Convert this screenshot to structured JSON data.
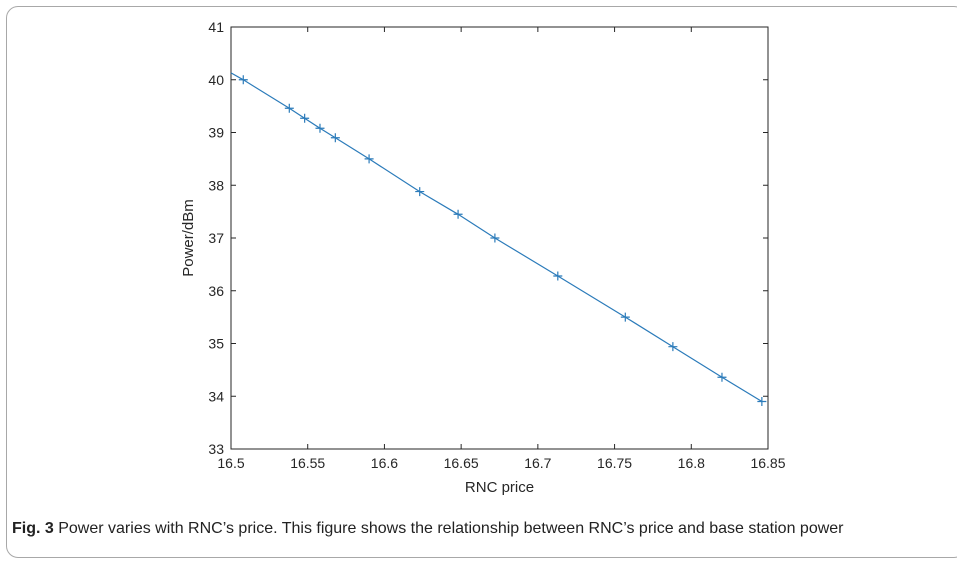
{
  "caption": {
    "label": "Fig. 3",
    "text": "Power varies with RNC’s price. This figure shows the relationship between RNC’s price and base station power"
  },
  "chart_data": {
    "type": "line",
    "title": "",
    "xlabel": "RNC price",
    "ylabel": "Power/dBm",
    "xlim": [
      16.5,
      16.85
    ],
    "ylim": [
      33,
      41
    ],
    "xticks": [
      16.5,
      16.55,
      16.6,
      16.65,
      16.7,
      16.75,
      16.8,
      16.85
    ],
    "xtick_labels": [
      "16.5",
      "16.55",
      "16.6",
      "16.65",
      "16.7",
      "16.75",
      "16.8",
      "16.85"
    ],
    "yticks": [
      33,
      34,
      35,
      36,
      37,
      38,
      39,
      40,
      41
    ],
    "ytick_labels": [
      "33",
      "34",
      "35",
      "36",
      "37",
      "38",
      "39",
      "40",
      "41"
    ],
    "grid": false,
    "line_color": "#2b7bba",
    "line_start": [
      16.5,
      40.13
    ],
    "series": [
      {
        "marker": "+",
        "x": [
          16.508,
          16.538,
          16.548,
          16.558,
          16.568,
          16.59,
          16.623,
          16.648,
          16.672,
          16.713,
          16.757,
          16.788,
          16.82,
          16.846
        ],
        "y": [
          40.0,
          39.46,
          39.27,
          39.08,
          38.9,
          38.5,
          37.88,
          37.45,
          37.0,
          36.28,
          35.5,
          34.94,
          34.36,
          33.9
        ]
      }
    ]
  }
}
